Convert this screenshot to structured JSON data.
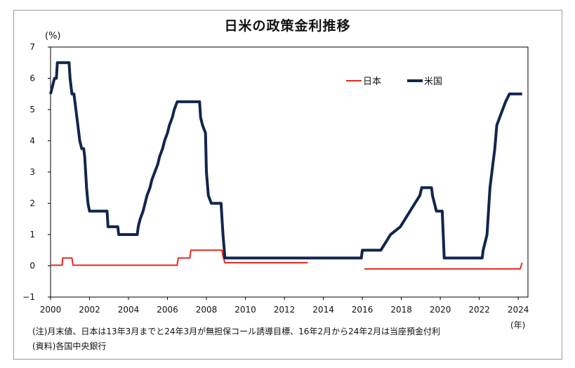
{
  "note": "(注)月末値、日本は13年3月までと24年3月が無担保コール誘導目標、16年2月から24年2月は当座預金付利",
  "source": "(資料)各国中央銀行",
  "chart_data": {
    "type": "line",
    "title": "日米の政策金利推移",
    "ylabel": "(%)",
    "xlabel": "(年)",
    "ylim": [
      -1,
      7
    ],
    "xlim": [
      2000,
      2024.5
    ],
    "yticks": [
      "7",
      "6",
      "5",
      "4",
      "3",
      "2",
      "1",
      "0",
      "−1"
    ],
    "ytick_values": [
      7,
      6,
      5,
      4,
      3,
      2,
      1,
      0,
      -1
    ],
    "xticks": [
      "2000",
      "2002",
      "2004",
      "2006",
      "2008",
      "2010",
      "2012",
      "2014",
      "2016",
      "2018",
      "2020",
      "2022",
      "2024"
    ],
    "xtick_values": [
      2000,
      2002,
      2004,
      2006,
      2008,
      2010,
      2012,
      2014,
      2016,
      2018,
      2020,
      2022,
      2024
    ],
    "grid": false,
    "legend_position": "top-right",
    "series": [
      {
        "name": "日本",
        "color": "#e8281e",
        "segments": [
          [
            [
              2000.0,
              0.02
            ],
            [
              2000.6,
              0.02
            ],
            [
              2000.62,
              0.25
            ],
            [
              2001.1,
              0.25
            ],
            [
              2001.15,
              0.02
            ],
            [
              2006.5,
              0.02
            ],
            [
              2006.55,
              0.25
            ],
            [
              2007.15,
              0.25
            ],
            [
              2007.2,
              0.5
            ],
            [
              2008.8,
              0.5
            ],
            [
              2008.85,
              0.3
            ],
            [
              2008.95,
              0.1
            ],
            [
              2013.2,
              0.1
            ]
          ],
          [
            [
              2016.1,
              -0.1
            ],
            [
              2024.1,
              -0.1
            ],
            [
              2024.2,
              0.1
            ]
          ]
        ]
      },
      {
        "name": "米国",
        "color": "#13254d",
        "segments": [
          [
            [
              2000.0,
              5.5
            ],
            [
              2000.1,
              5.75
            ],
            [
              2000.2,
              6.0
            ],
            [
              2000.3,
              6.0
            ],
            [
              2000.35,
              6.5
            ],
            [
              2000.95,
              6.5
            ],
            [
              2001.0,
              6.0
            ],
            [
              2001.1,
              5.5
            ],
            [
              2001.2,
              5.5
            ],
            [
              2001.3,
              5.0
            ],
            [
              2001.4,
              4.5
            ],
            [
              2001.5,
              4.0
            ],
            [
              2001.6,
              3.75
            ],
            [
              2001.7,
              3.75
            ],
            [
              2001.75,
              3.5
            ],
            [
              2001.8,
              3.0
            ],
            [
              2001.85,
              2.5
            ],
            [
              2001.92,
              2.0
            ],
            [
              2002.0,
              1.75
            ],
            [
              2002.9,
              1.75
            ],
            [
              2002.95,
              1.25
            ],
            [
              2003.45,
              1.25
            ],
            [
              2003.5,
              1.0
            ],
            [
              2004.45,
              1.0
            ],
            [
              2004.5,
              1.25
            ],
            [
              2004.6,
              1.5
            ],
            [
              2004.75,
              1.75
            ],
            [
              2004.85,
              2.0
            ],
            [
              2004.95,
              2.25
            ],
            [
              2005.1,
              2.5
            ],
            [
              2005.2,
              2.75
            ],
            [
              2005.35,
              3.0
            ],
            [
              2005.5,
              3.25
            ],
            [
              2005.6,
              3.5
            ],
            [
              2005.75,
              3.75
            ],
            [
              2005.85,
              4.0
            ],
            [
              2006.0,
              4.25
            ],
            [
              2006.1,
              4.5
            ],
            [
              2006.25,
              4.75
            ],
            [
              2006.35,
              5.0
            ],
            [
              2006.5,
              5.25
            ],
            [
              2007.65,
              5.25
            ],
            [
              2007.7,
              4.75
            ],
            [
              2007.8,
              4.5
            ],
            [
              2007.95,
              4.25
            ],
            [
              2008.0,
              3.0
            ],
            [
              2008.1,
              2.25
            ],
            [
              2008.25,
              2.0
            ],
            [
              2008.75,
              2.0
            ],
            [
              2008.8,
              1.5
            ],
            [
              2008.85,
              1.0
            ],
            [
              2008.95,
              0.25
            ],
            [
              2015.95,
              0.25
            ],
            [
              2016.0,
              0.5
            ],
            [
              2016.95,
              0.5
            ],
            [
              2017.2,
              0.75
            ],
            [
              2017.45,
              1.0
            ],
            [
              2017.95,
              1.25
            ],
            [
              2018.2,
              1.5
            ],
            [
              2018.45,
              1.75
            ],
            [
              2018.7,
              2.0
            ],
            [
              2018.95,
              2.25
            ],
            [
              2019.05,
              2.5
            ],
            [
              2019.55,
              2.5
            ],
            [
              2019.6,
              2.25
            ],
            [
              2019.7,
              2.0
            ],
            [
              2019.8,
              1.75
            ],
            [
              2020.1,
              1.75
            ],
            [
              2020.2,
              0.25
            ],
            [
              2022.15,
              0.25
            ],
            [
              2022.2,
              0.5
            ],
            [
              2022.4,
              1.0
            ],
            [
              2022.45,
              1.5
            ],
            [
              2022.55,
              2.5
            ],
            [
              2022.7,
              3.25
            ],
            [
              2022.8,
              3.75
            ],
            [
              2022.9,
              4.5
            ],
            [
              2023.05,
              4.75
            ],
            [
              2023.2,
              5.0
            ],
            [
              2023.35,
              5.25
            ],
            [
              2023.55,
              5.5
            ],
            [
              2024.2,
              5.5
            ]
          ]
        ]
      }
    ]
  }
}
